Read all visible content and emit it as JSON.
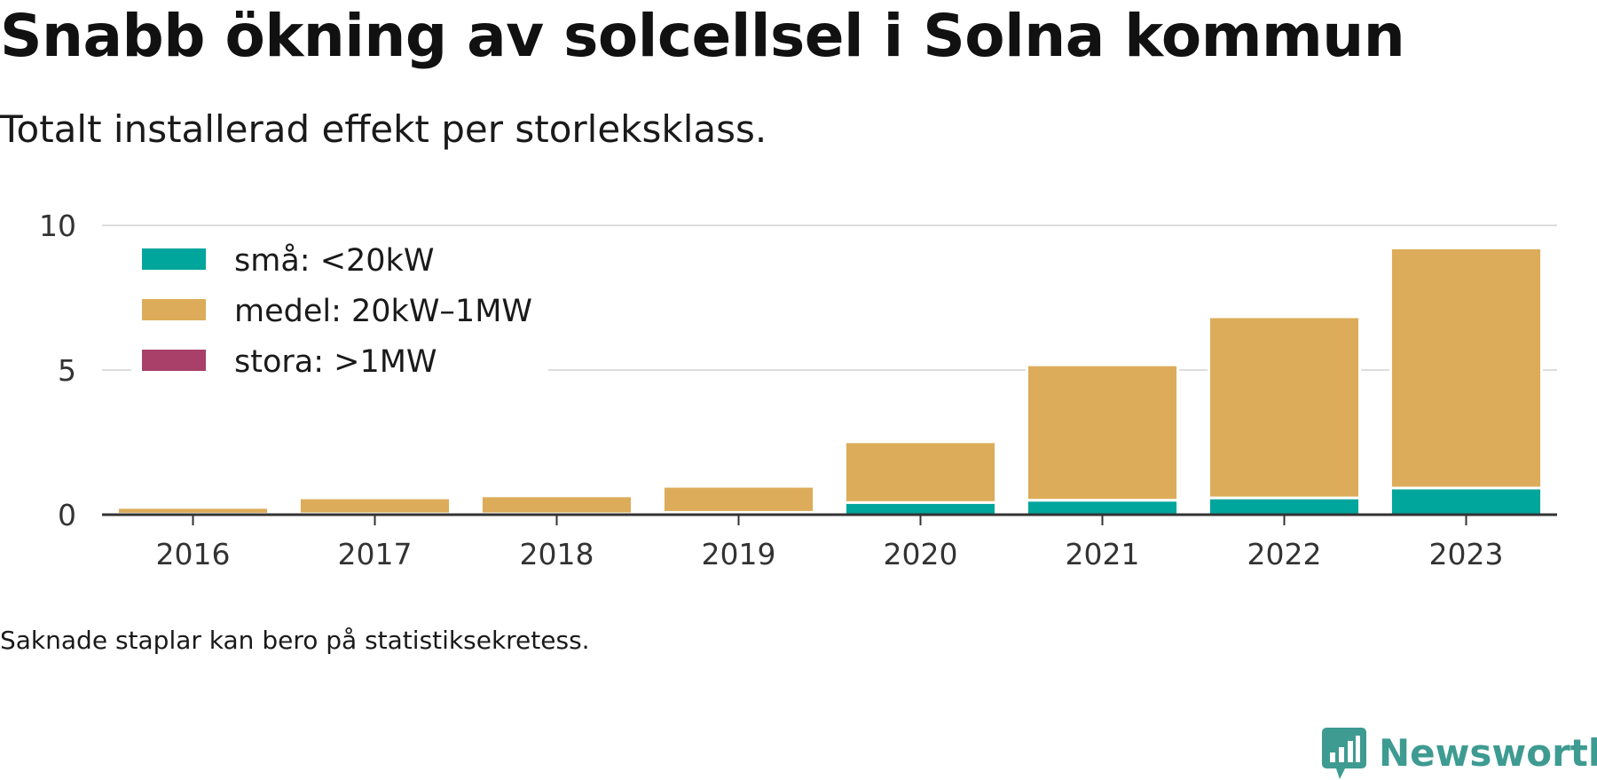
{
  "title": "Snabb ökning av solcellsel i Solna kommun",
  "subtitle": "Totalt installerad effekt per storleksklass.",
  "note": "Saknade staplar kan bero på statistiksekretess.",
  "brand": "Newsworthy",
  "chart_data": {
    "type": "bar",
    "stacked": true,
    "categories": [
      "2016",
      "2017",
      "2018",
      "2019",
      "2020",
      "2021",
      "2022",
      "2023"
    ],
    "series": [
      {
        "name": "små: <20kW",
        "color": "#00a69c",
        "values": [
          0.02,
          0.03,
          0.03,
          0.08,
          0.42,
          0.5,
          0.58,
          0.92
        ]
      },
      {
        "name": "medel: 20kW–1MW",
        "color": "#dcac5a",
        "values": [
          0.23,
          0.55,
          0.62,
          0.9,
          2.1,
          4.68,
          6.26,
          8.3
        ]
      },
      {
        "name": "stora: >1MW",
        "color": "#a8406a",
        "values": [
          0,
          0,
          0,
          0,
          0,
          0,
          0,
          0
        ]
      }
    ],
    "yticks": [
      0,
      5,
      10
    ],
    "ylim": [
      0,
      10
    ],
    "grid": true,
    "legend_position": "top-left"
  }
}
